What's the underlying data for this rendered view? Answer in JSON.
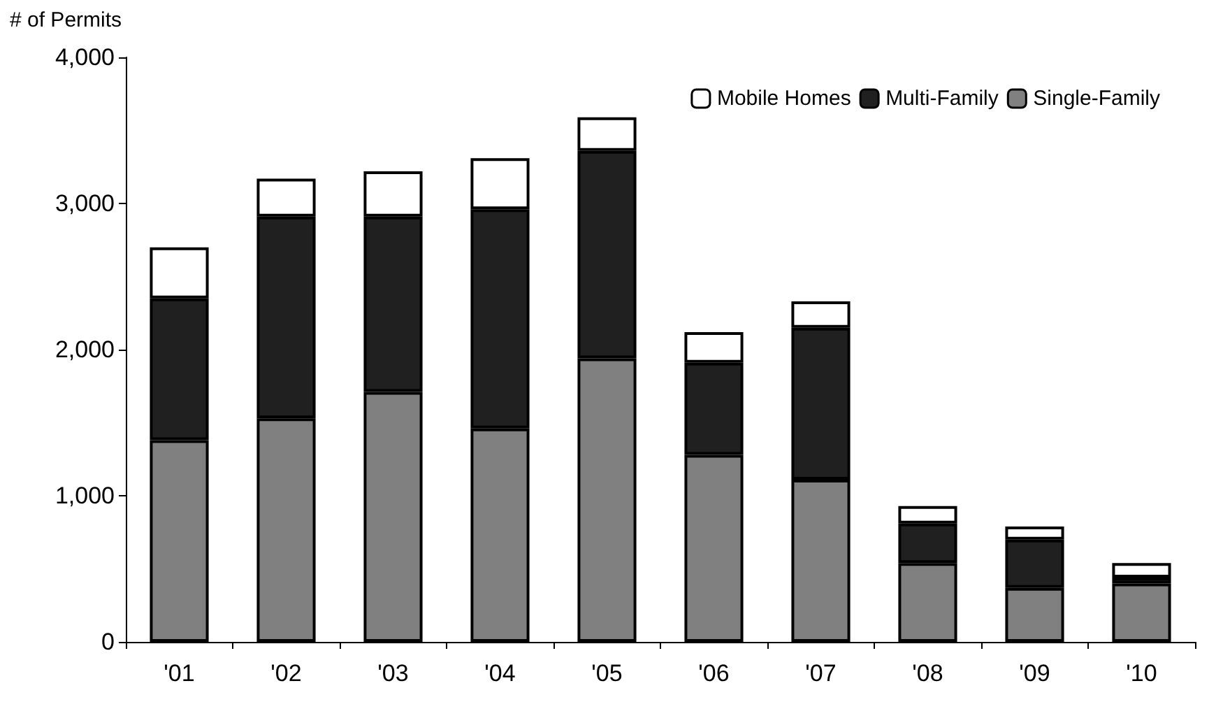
{
  "chart_data": {
    "type": "bar",
    "stacked": true,
    "ylabel": "# of Permits",
    "categories": [
      "'01",
      "'02",
      "'03",
      "'04",
      "'05",
      "'06",
      "'07",
      "'08",
      "'09",
      "'10"
    ],
    "series": [
      {
        "name": "Single-Family",
        "color": "#808080",
        "values": [
          1380,
          1530,
          1710,
          1460,
          1940,
          1280,
          1110,
          540,
          370,
          400
        ]
      },
      {
        "name": "Multi-Family",
        "color": "#202020",
        "values": [
          970,
          1380,
          1200,
          1500,
          1420,
          630,
          1040,
          270,
          330,
          40
        ]
      },
      {
        "name": "Mobile Homes",
        "color": "#ffffff",
        "values": [
          350,
          260,
          310,
          350,
          230,
          210,
          180,
          120,
          90,
          100
        ]
      }
    ],
    "ylim": [
      0,
      4000
    ],
    "yticks": [
      {
        "value": 0,
        "label": "0"
      },
      {
        "value": 1000,
        "label": "1,000"
      },
      {
        "value": 2000,
        "label": "2,000"
      },
      {
        "value": 3000,
        "label": "3,000"
      },
      {
        "value": 4000,
        "label": "4,000"
      }
    ],
    "grid": false,
    "legend": "top right"
  }
}
